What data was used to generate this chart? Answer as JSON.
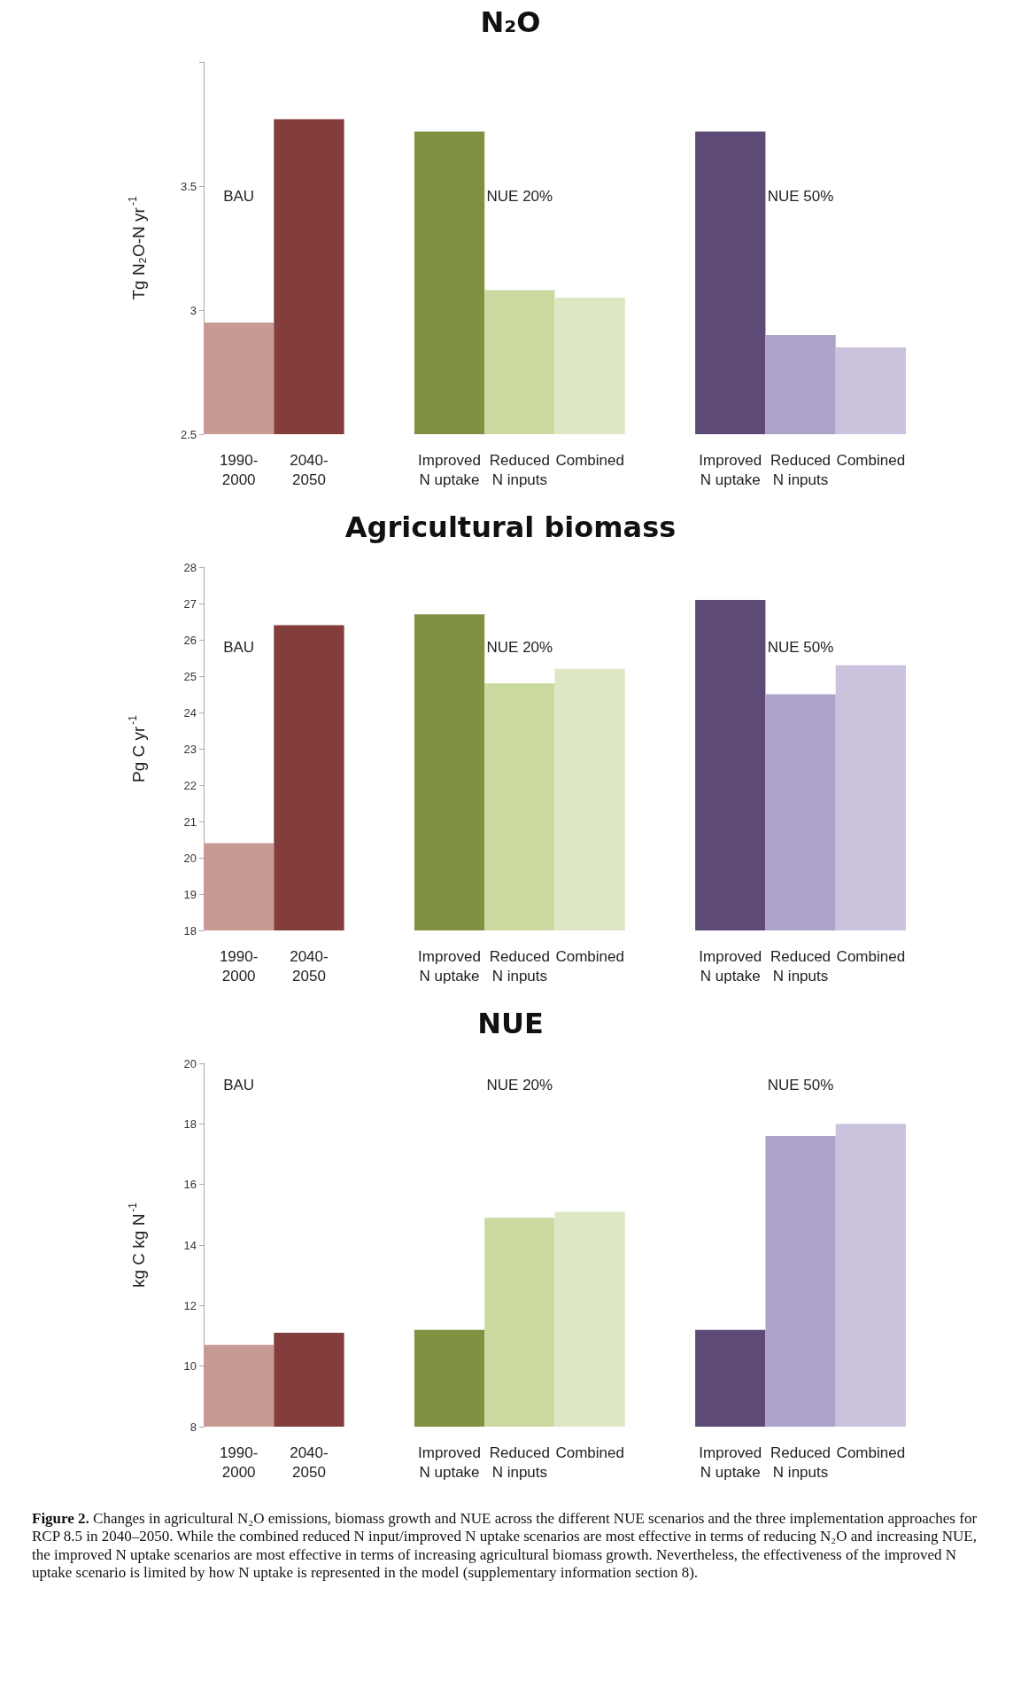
{
  "chart_data": [
    {
      "type": "bar",
      "title": "N₂O",
      "ylabel": "Tg N₂O-N yr$^{-1}$",
      "categories": [
        "1990- 2000",
        "2040- 2050",
        null,
        "Improved N uptake",
        "Reduced N inputs",
        "Combined",
        null,
        "Improved N uptake",
        "Reduced N inputs",
        "Combined"
      ],
      "values": [
        2.95,
        3.77,
        null,
        3.72,
        3.08,
        3.05,
        null,
        3.72,
        2.9,
        2.85
      ],
      "colors": [
        "#c89a94",
        "#833d3b",
        null,
        "#809242",
        "#c9d9a0",
        "#dde7c4",
        null,
        "#5d4a76",
        "#afa2c8",
        "#cbc3de"
      ],
      "ylim": [
        2.5,
        4
      ],
      "yticks": [
        2.5,
        3,
        3.5,
        {
          "value": 4,
          "label": null
        }
      ],
      "grid": false,
      "annotations": [
        "BAU",
        "NUE 20%",
        "NUE 50%"
      ]
    },
    {
      "type": "bar",
      "title": "Agricultural biomass",
      "ylabel": "Pg C yr$^{-1}$",
      "categories": [
        "1990- 2000",
        "2040- 2050",
        null,
        "Improved N uptake",
        "Reduced N inputs",
        "Combined",
        null,
        "Improved N uptake",
        "Reduced N inputs",
        "Combined"
      ],
      "values": [
        20.4,
        26.4,
        null,
        26.7,
        24.8,
        25.2,
        null,
        27.1,
        24.5,
        25.3
      ],
      "colors": [
        "#c89a94",
        "#833d3b",
        null,
        "#809242",
        "#c9d9a0",
        "#dde7c4",
        null,
        "#5d4a76",
        "#afa2c8",
        "#cbc3de"
      ],
      "ylim": [
        18,
        28
      ],
      "yticks": [
        18,
        19,
        20,
        21,
        22,
        23,
        24,
        25,
        26,
        27,
        28
      ],
      "grid": false,
      "annotations": [
        "BAU",
        "NUE 20%",
        "NUE 50%"
      ]
    },
    {
      "type": "bar",
      "title": "NUE",
      "ylabel": "kg C kg N$^{-1}$",
      "categories": [
        "1990- 2000",
        "2040- 2050",
        null,
        "Improved N uptake",
        "Reduced N inputs",
        "Combined",
        null,
        "Improved N uptake",
        "Reduced N inputs",
        "Combined"
      ],
      "values": [
        10.7,
        11.1,
        null,
        11.2,
        14.9,
        15.1,
        null,
        11.2,
        17.6,
        18.0
      ],
      "colors": [
        "#c89a94",
        "#833d3b",
        null,
        "#809242",
        "#c9d9a0",
        "#dde7c4",
        null,
        "#5d4a76",
        "#afa2c8",
        "#cbc3de"
      ],
      "ylim": [
        8,
        20
      ],
      "yticks": [
        8,
        10,
        12,
        14,
        16,
        18,
        20
      ],
      "grid": false,
      "annotations": [
        "BAU",
        "NUE 20%",
        "NUE 50%",
        "Figure 2. Changes in agricultural N₂O emissions, biomass growth and NUE across the different NUE scenarios and the three implementation approaches for RCP 8.5 in 2040–2050. While the combined reduced N input/improved N uptake scenarios are most effective in terms of reducing N₂O and increasing NUE, the improved N uptake scenarios are most effective in terms of increasing agricultural biomass growth. Nevertheless, the effectiveness of the improved N uptake scenario is limited by how N uptake is represented in the model (supplementary information section 8)."
      ]
    }
  ]
}
